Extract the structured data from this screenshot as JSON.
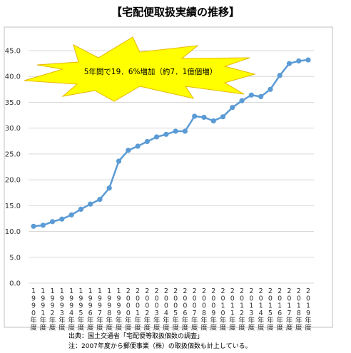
{
  "page": {
    "title": "【宅配便取扱実績の推移】"
  },
  "chart_data": {
    "type": "line",
    "title": "【宅配便取扱実績の推移】",
    "xlabel": "",
    "ylabel": "",
    "ylim": [
      0,
      45
    ],
    "yticks": [
      "0.0",
      "5.0",
      "10.0",
      "15.0",
      "20.0",
      "25.0",
      "30.0",
      "35.0",
      "40.0",
      "45.0"
    ],
    "grid": true,
    "categories": [
      "1990年度",
      "1991年度",
      "1992年度",
      "1993年度",
      "1994年度",
      "1995年度",
      "1996年度",
      "1997年度",
      "1998年度",
      "1999年度",
      "2000年度",
      "2001年度",
      "2002年度",
      "2003年度",
      "2004年度",
      "2005年度",
      "2006年度",
      "2007年度",
      "2008年度",
      "2009年度",
      "2010年度",
      "2011年度",
      "2012年度",
      "2013年度",
      "2014年度",
      "2015年度",
      "2016年度",
      "2017年度",
      "2018年度",
      "2019年度"
    ],
    "series": [
      {
        "color": "#5b9bd5",
        "values": [
          11.0,
          11.2,
          11.9,
          12.4,
          13.2,
          14.3,
          15.3,
          16.2,
          18.4,
          23.6,
          25.7,
          26.5,
          27.4,
          28.3,
          28.8,
          29.4,
          29.4,
          32.3,
          32.1,
          31.4,
          32.2,
          34.0,
          35.3,
          36.4,
          36.1,
          37.5,
          40.2,
          42.5,
          43.0,
          43.2
        ]
      }
    ],
    "annotation": {
      "text": "5年間で19．6%増加（約7．1億個増）",
      "shape": "starburst",
      "fill": "#ffff00",
      "stroke": "#e6b800"
    }
  },
  "footer": {
    "source": "出典：国土交通省「宅配便等取扱個数の調査」",
    "note": "注：2007年度から郵便事業（株）の取扱個数も計上している。"
  }
}
